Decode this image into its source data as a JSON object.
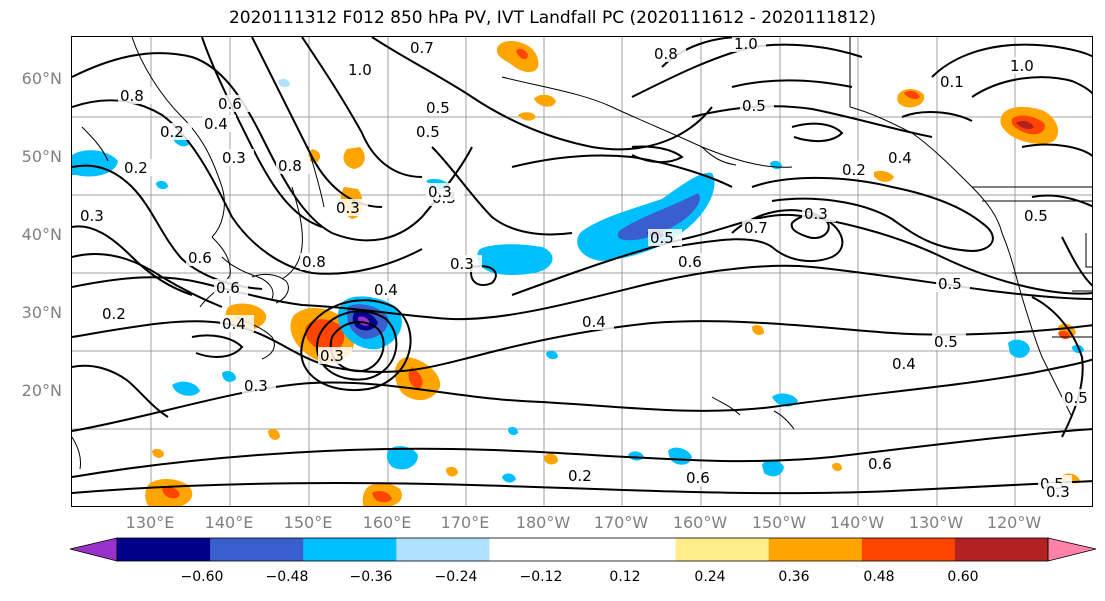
{
  "title": "2020111312 F012 850 hPa PV, IVT Landfall PC (2020111612 - 2020111812)",
  "lat_labels": [
    "60°N",
    "50°N",
    "40°N",
    "30°N",
    "20°N"
  ],
  "lon_labels": [
    "130°E",
    "140°E",
    "150°E",
    "160°E",
    "170°E",
    "180°W",
    "170°W",
    "160°W",
    "150°W",
    "140°W",
    "130°W",
    "120°W"
  ],
  "colorbar": {
    "colors": [
      "#9932cc",
      "#00008b",
      "#3a5fcd",
      "#00bfff",
      "#b0e2ff",
      "#ffffff",
      "#ffffff",
      "#ffec8b",
      "#ffa500",
      "#ff4500",
      "#b22222",
      "#ff82ab"
    ],
    "ticks": [
      "−0.60",
      "−0.48",
      "−0.36",
      "−0.24",
      "−0.12",
      "0.12",
      "0.24",
      "0.36",
      "0.48",
      "0.60"
    ]
  },
  "contour_labels": [
    "0.7",
    "1.0",
    "1.0",
    "1.0",
    "0.8",
    "0.6",
    "0.5",
    "0.4",
    "0.3",
    "0.5",
    "0.5",
    "0.8",
    "0.8",
    "0.1",
    "0.3",
    "0.2",
    "0.4",
    "0.3",
    "0.5",
    "0.7",
    "0.3",
    "0.6",
    "0.3",
    "0.4",
    "0.5",
    "0.4",
    "0.5",
    "0.3",
    "0.6",
    "0.4",
    "0.2",
    "0.6",
    "0.6",
    "0.5",
    "0.3",
    "0.4",
    "0.6",
    "0.3",
    "0.2",
    "0.2",
    "0.2",
    "0.3",
    "0.5",
    "0.5",
    "0.3",
    "0.8"
  ]
}
